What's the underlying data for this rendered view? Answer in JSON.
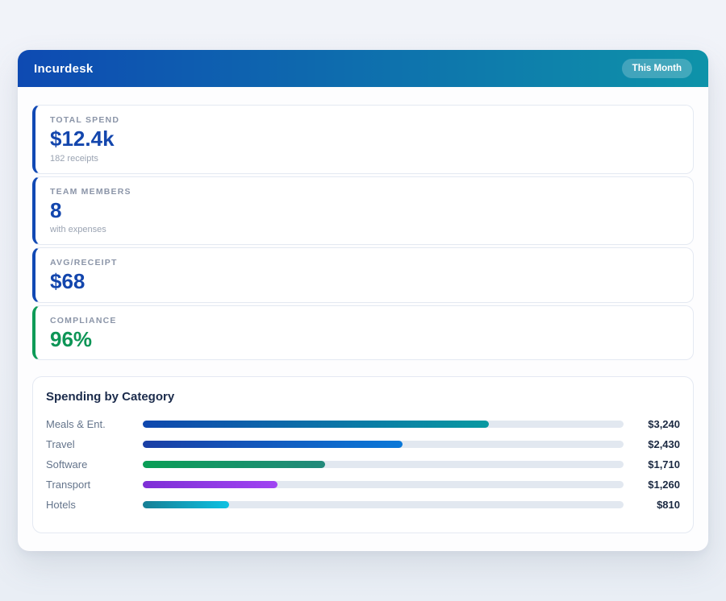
{
  "page": {
    "background": "#eef1f7"
  },
  "header": {
    "title": "Incurdesk",
    "badge": "This Month",
    "gradient_from": "#0e4ab2",
    "gradient_to": "#0e93a9"
  },
  "stats": [
    {
      "label": "TOTAL SPEND",
      "value": "$12.4k",
      "sub": "182 receipts",
      "accent": "#1149b4",
      "value_color": "#1346ad"
    },
    {
      "label": "TEAM MEMBERS",
      "value": "8",
      "sub": "with expenses",
      "accent": "#1149b4",
      "value_color": "#1346ad"
    },
    {
      "label": "AVG/RECEIPT",
      "value": "$68",
      "sub": "",
      "accent": "#1149b4",
      "value_color": "#1346ad"
    },
    {
      "label": "COMPLIANCE",
      "value": "96%",
      "sub": "",
      "accent": "#0d9b57",
      "value_color": "#0d9556"
    }
  ],
  "spending": {
    "title": "Spending by Category",
    "track_color": "#e2e8f0",
    "rows": [
      {
        "label": "Meals & Ent.",
        "value": "$3,240",
        "pct": 72,
        "from": "#0f47ae",
        "to": "#0899a1"
      },
      {
        "label": "Travel",
        "value": "$2,430",
        "pct": 54,
        "from": "#1a3fa5",
        "to": "#0a78d8"
      },
      {
        "label": "Software",
        "value": "$1,710",
        "pct": 38,
        "from": "#0a9e56",
        "to": "#22897b"
      },
      {
        "label": "Transport",
        "value": "$1,260",
        "pct": 28,
        "from": "#7e2fd6",
        "to": "#a044f2"
      },
      {
        "label": "Hotels",
        "value": "$810",
        "pct": 18,
        "from": "#177f95",
        "to": "#0dc1e2"
      }
    ]
  },
  "chart_data": {
    "type": "bar",
    "orientation": "horizontal",
    "title": "Spending by Category",
    "categories": [
      "Meals & Ent.",
      "Travel",
      "Software",
      "Transport",
      "Hotels"
    ],
    "values": [
      3240,
      2430,
      1710,
      1260,
      810
    ],
    "value_labels": [
      "$3,240",
      "$2,430",
      "$1,710",
      "$1,260",
      "$810"
    ],
    "xlim": [
      0,
      4500
    ],
    "grid": false,
    "legend": false
  }
}
